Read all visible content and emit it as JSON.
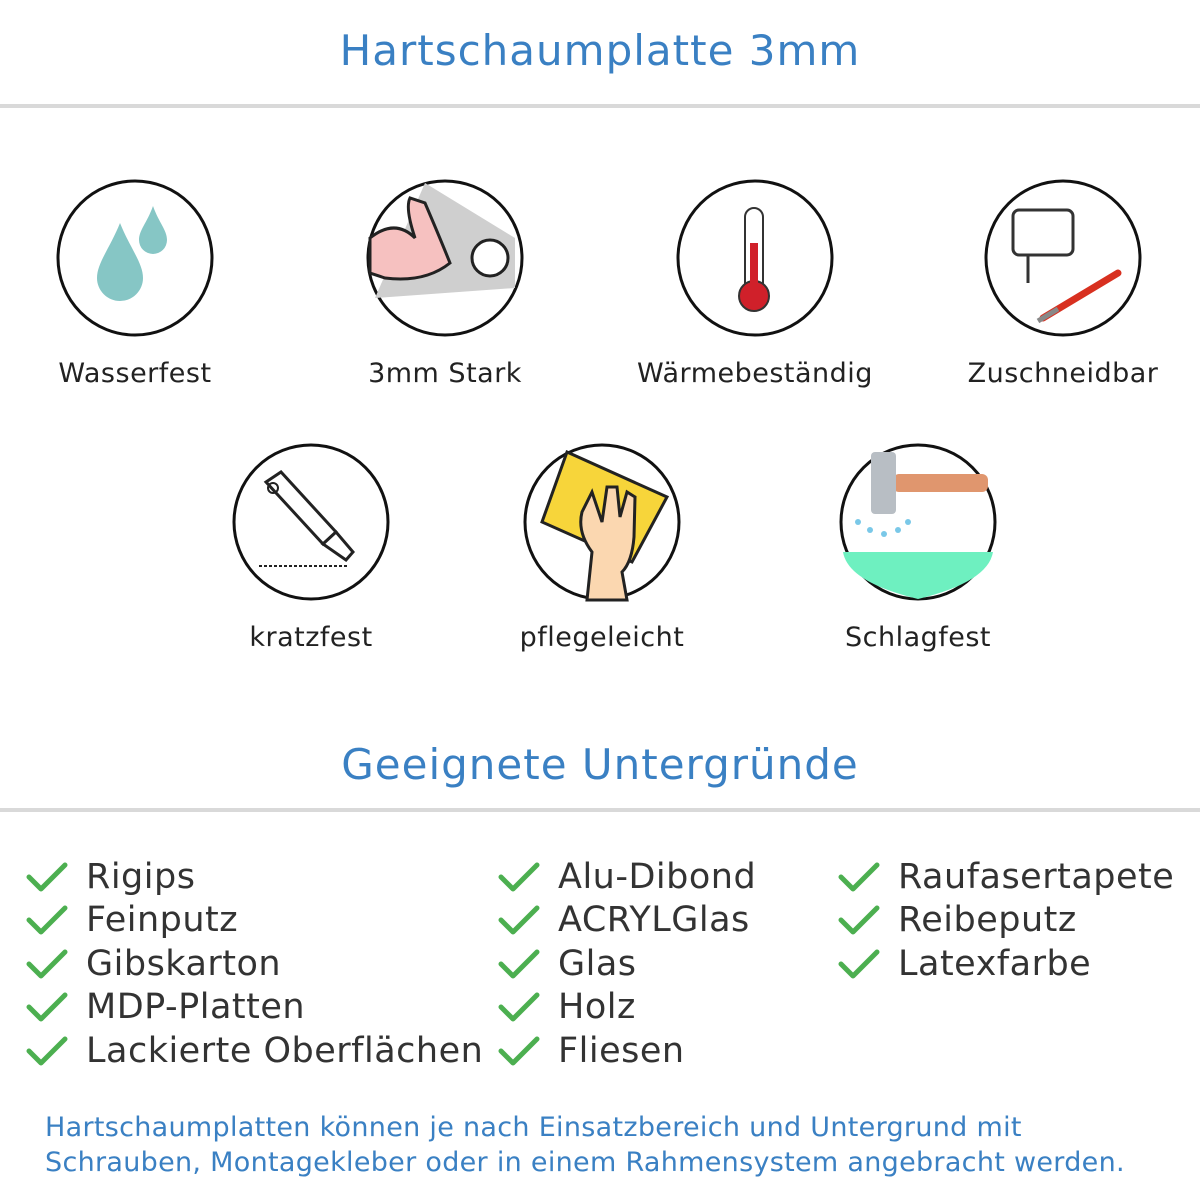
{
  "header": {
    "title": "Hartschaumplatte 3mm"
  },
  "features": [
    {
      "label": "Wasserfest",
      "icon": "water-drops-icon"
    },
    {
      "label": "3mm Stark",
      "icon": "strong-arm-icon"
    },
    {
      "label": "Wärmebeständig",
      "icon": "thermometer-icon"
    },
    {
      "label": "Zuschneidbar",
      "icon": "jigsaw-knife-icon"
    },
    {
      "label": "kratzfest",
      "icon": "cutter-knife-icon"
    },
    {
      "label": "pflegeleicht",
      "icon": "hand-sponge-icon"
    },
    {
      "label": "Schlagfest",
      "icon": "hammer-icon"
    }
  ],
  "substrates": {
    "title": "Geeignete Untergründe",
    "columns": [
      [
        "Rigips",
        "Feinputz",
        "Gibskarton",
        "MDP-Platten",
        "Lackierte Oberflächen"
      ],
      [
        "Alu-Dibond",
        "ACRYLGlas",
        "Glas",
        "Holz",
        "Fliesen"
      ],
      [
        "Raufasertapete",
        "Reibeputz",
        "Latexfarbe"
      ]
    ]
  },
  "footer": {
    "line1": "Hartschaumplatten können je nach Einsatzbereich und Untergrund mit",
    "line2": "Schrauben, Montagekleber oder in einem Rahmensystem angebracht werden."
  },
  "colors": {
    "accent": "#3a80c3",
    "check": "#4caf50",
    "separator": "#d9d9d9"
  }
}
